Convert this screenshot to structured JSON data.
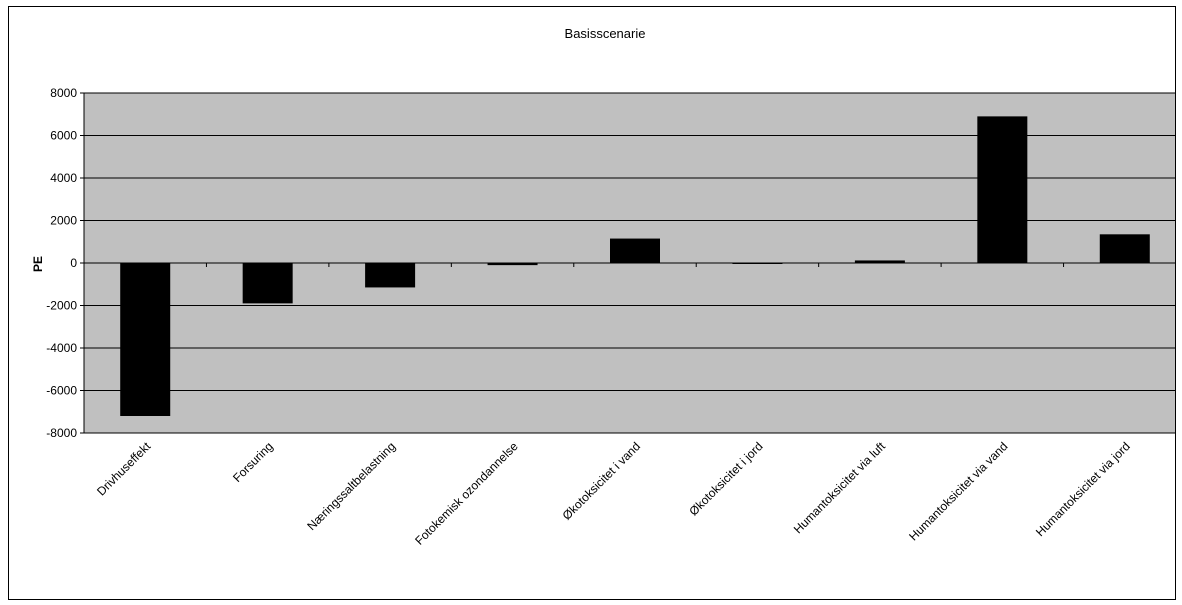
{
  "chart_data": {
    "type": "bar",
    "title": "Basisscenarie",
    "xlabel": "",
    "ylabel": "PE",
    "ylim": [
      -8000,
      8000
    ],
    "yticks": [
      8000,
      6000,
      4000,
      2000,
      0,
      -2000,
      -4000,
      -6000,
      -8000
    ],
    "grid": true,
    "legend": "none",
    "categories": [
      "Drivhuseffekt",
      "Forsuring",
      "Næringssaltbelastning",
      "Fotokemisk ozondannelse",
      "Økotoksicitet i vand",
      "Økotoksicitet i jord",
      "Humantoksicitet via luft",
      "Humantoksicitet via vand",
      "Humantoksicitet via jord"
    ],
    "values": [
      -7200,
      -1900,
      -1150,
      -100,
      1150,
      0,
      120,
      6900,
      1350
    ],
    "colors": {
      "plot_background": "#c0c0c0",
      "bar": "#000000",
      "gridline": "#000000"
    }
  }
}
